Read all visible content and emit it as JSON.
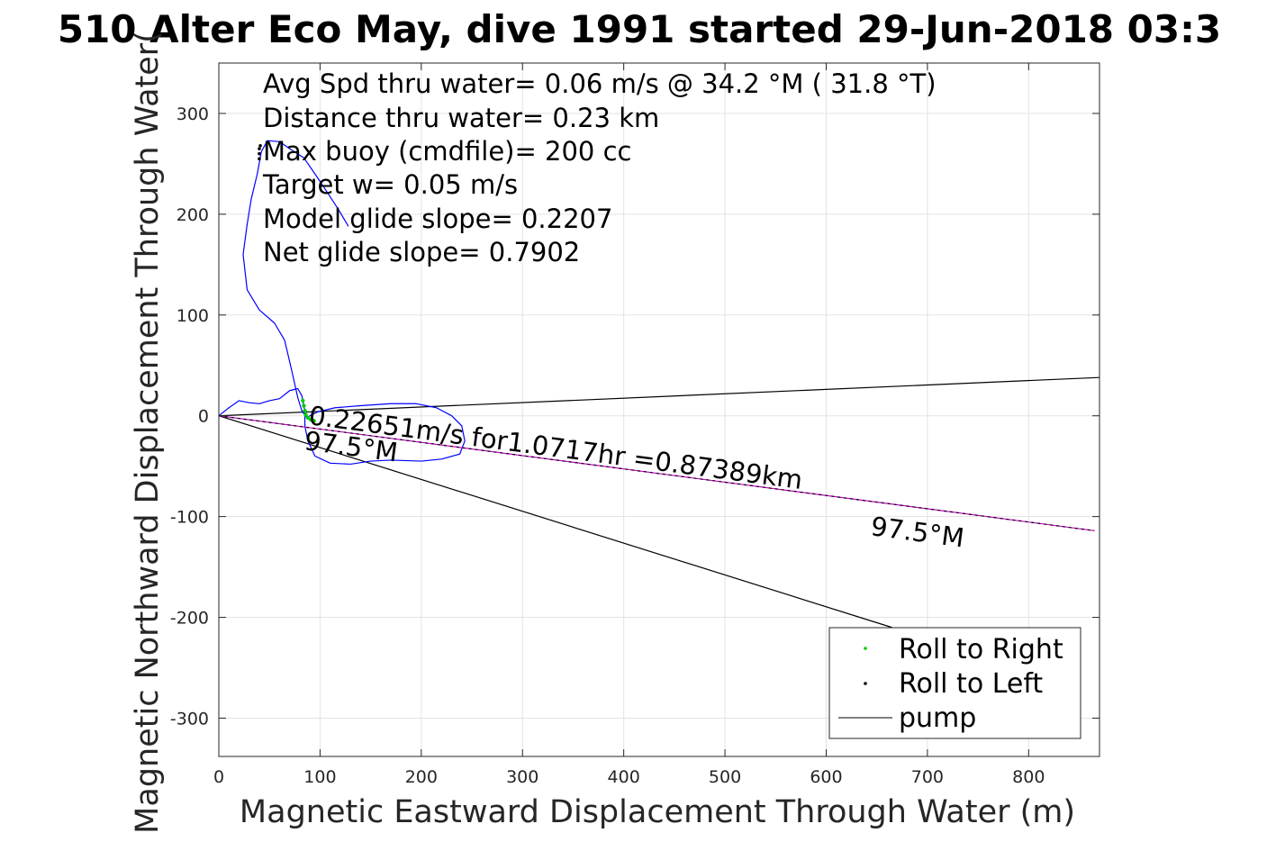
{
  "chart_data": {
    "type": "line",
    "title": "510 Alter Eco May, dive 1991 started 29-Jun-2018 03:3",
    "xlabel": "Magnetic Eastward Displacement Through Water (m)",
    "ylabel": "Magnetic Northward Displacement Through Water(",
    "xlim": [
      0,
      870
    ],
    "ylim": [
      -338,
      350
    ],
    "xticks": [
      0,
      100,
      200,
      300,
      400,
      500,
      600,
      700,
      800
    ],
    "yticks": [
      -300,
      -200,
      -100,
      0,
      100,
      200,
      300
    ],
    "grid": true,
    "info_lines": [
      "Avg Spd thru water=  0.06 m/s @  34.2 °M ( 31.8 °T)",
      "Distance thru water=  0.23 km",
      "Max buoy (cmdfile)= 200 cc",
      "Target w= 0.05 m/s",
      "Model glide slope= 0.2207",
      "Net glide slope= 0.7902"
    ],
    "annotations": {
      "speed_label": "0.22651m/s for1.0717hr =0.87389km",
      "heading_label_near": "97.5°M",
      "heading_label_far": "97.5°M"
    },
    "legend": {
      "placement": "bottom-right",
      "entries": [
        "Roll to Right",
        "Roll to Left",
        "pump"
      ]
    },
    "series": [
      {
        "name": "trajectory",
        "color": "#0000ff",
        "points": [
          [
            0,
            0
          ],
          [
            10,
            8
          ],
          [
            20,
            15
          ],
          [
            30,
            13
          ],
          [
            40,
            12
          ],
          [
            50,
            15
          ],
          [
            60,
            17
          ],
          [
            70,
            25
          ],
          [
            78,
            27
          ],
          [
            82,
            20
          ],
          [
            85,
            5
          ],
          [
            85,
            -10
          ],
          [
            88,
            -25
          ],
          [
            95,
            -40
          ],
          [
            110,
            -47
          ],
          [
            130,
            -48
          ],
          [
            150,
            -45
          ],
          [
            170,
            -44
          ],
          [
            200,
            -45
          ],
          [
            220,
            -43
          ],
          [
            238,
            -38
          ],
          [
            243,
            -25
          ],
          [
            240,
            -10
          ],
          [
            230,
            0
          ],
          [
            215,
            8
          ],
          [
            195,
            12
          ],
          [
            170,
            12
          ],
          [
            140,
            10
          ],
          [
            115,
            8
          ],
          [
            98,
            4
          ],
          [
            90,
            0
          ],
          [
            87,
            -2
          ],
          [
            82,
            5
          ],
          [
            78,
            18
          ],
          [
            72,
            45
          ],
          [
            65,
            75
          ],
          [
            55,
            92
          ],
          [
            40,
            105
          ],
          [
            28,
            125
          ],
          [
            24,
            160
          ],
          [
            28,
            190
          ],
          [
            32,
            215
          ],
          [
            38,
            240
          ],
          [
            42,
            262
          ],
          [
            48,
            273
          ],
          [
            60,
            272
          ],
          [
            70,
            265
          ],
          [
            84,
            256
          ],
          [
            95,
            240
          ],
          [
            105,
            225
          ],
          [
            118,
            205
          ],
          [
            128,
            188
          ]
        ]
      },
      {
        "name": "Roll to Right",
        "color": "#00cc00",
        "points": [
          [
            83,
            15
          ],
          [
            84,
            10
          ],
          [
            85,
            5
          ],
          [
            86,
            1
          ],
          [
            88,
            -2
          ],
          [
            91,
            -4
          ],
          [
            94,
            -5
          ]
        ]
      },
      {
        "name": "Roll to Left",
        "color": "#000000",
        "points": [
          [
            40,
            255
          ],
          [
            40,
            260
          ],
          [
            40,
            265
          ],
          [
            41,
            268
          ]
        ]
      },
      {
        "name": "pump",
        "color": "#000000",
        "points": []
      },
      {
        "name": "heading-line",
        "color": "#cc00cc",
        "points": [
          [
            0,
            0
          ],
          [
            865,
            -114
          ]
        ]
      },
      {
        "name": "bound-upper",
        "color": "#000000",
        "points": [
          [
            0,
            0
          ],
          [
            870,
            38
          ]
        ]
      },
      {
        "name": "bound-lower",
        "color": "#000000",
        "points": [
          [
            0,
            0
          ],
          [
            665,
            -210
          ]
        ]
      }
    ]
  }
}
